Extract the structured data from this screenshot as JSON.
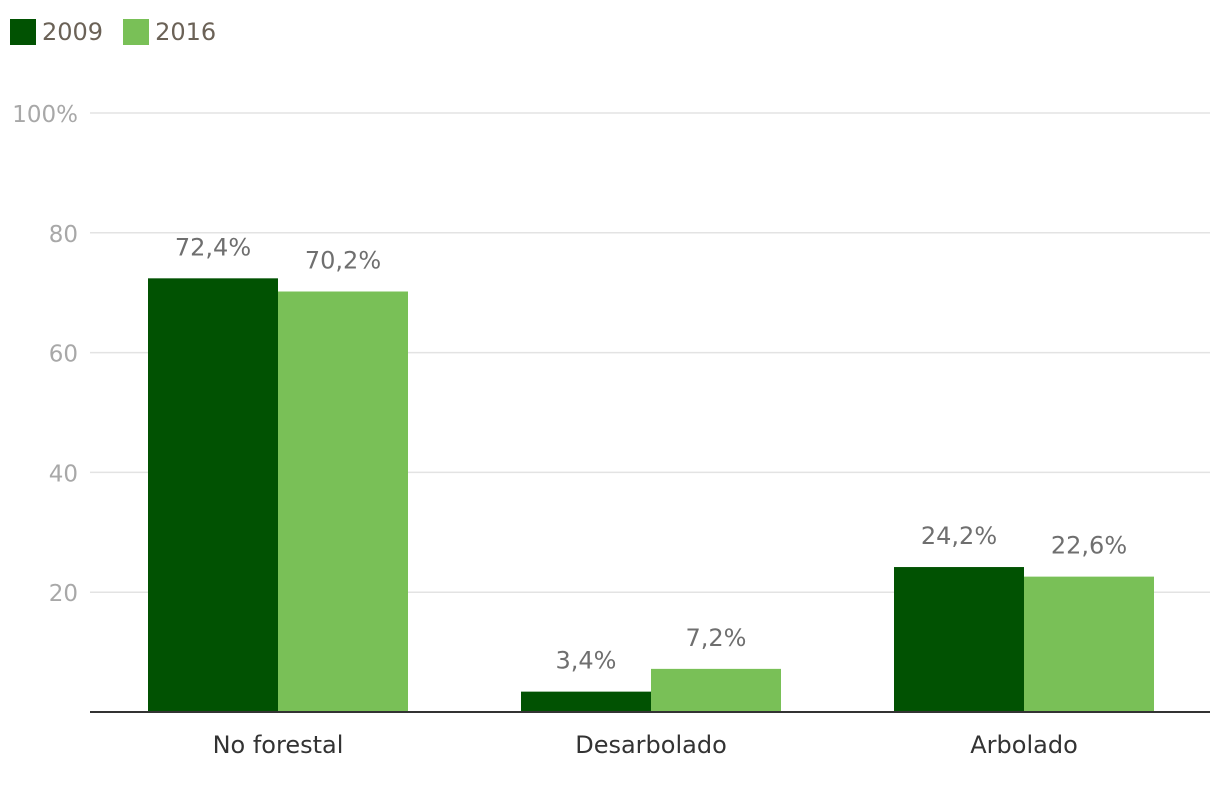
{
  "chart_data": {
    "type": "bar",
    "categories": [
      "No forestal",
      "Desarbolado",
      "Arbolado"
    ],
    "series": [
      {
        "name": "2009",
        "values": [
          72.4,
          3.4,
          24.2
        ],
        "labels": [
          "72,4%",
          "3,4%",
          "24,2%"
        ],
        "color": "#015202"
      },
      {
        "name": "2016",
        "values": [
          70.2,
          7.2,
          22.6
        ],
        "labels": [
          "70,2%",
          "7,2%",
          "22,6%"
        ],
        "color": "#79c057"
      }
    ],
    "y_ticks": [
      {
        "value": 20,
        "label": "20"
      },
      {
        "value": 40,
        "label": "40"
      },
      {
        "value": 60,
        "label": "60"
      },
      {
        "value": 80,
        "label": "80"
      },
      {
        "value": 100,
        "label": "100%"
      }
    ],
    "ylim": [
      0,
      100
    ],
    "grid": true,
    "legend_position": "top-left",
    "colors": {
      "grid": "#e3e3e3",
      "axis": "#333333",
      "tick_text": "#a8a8a8",
      "label_text": "#6f6f6f",
      "category_text": "#333333",
      "legend_text": "#6b6257"
    }
  }
}
